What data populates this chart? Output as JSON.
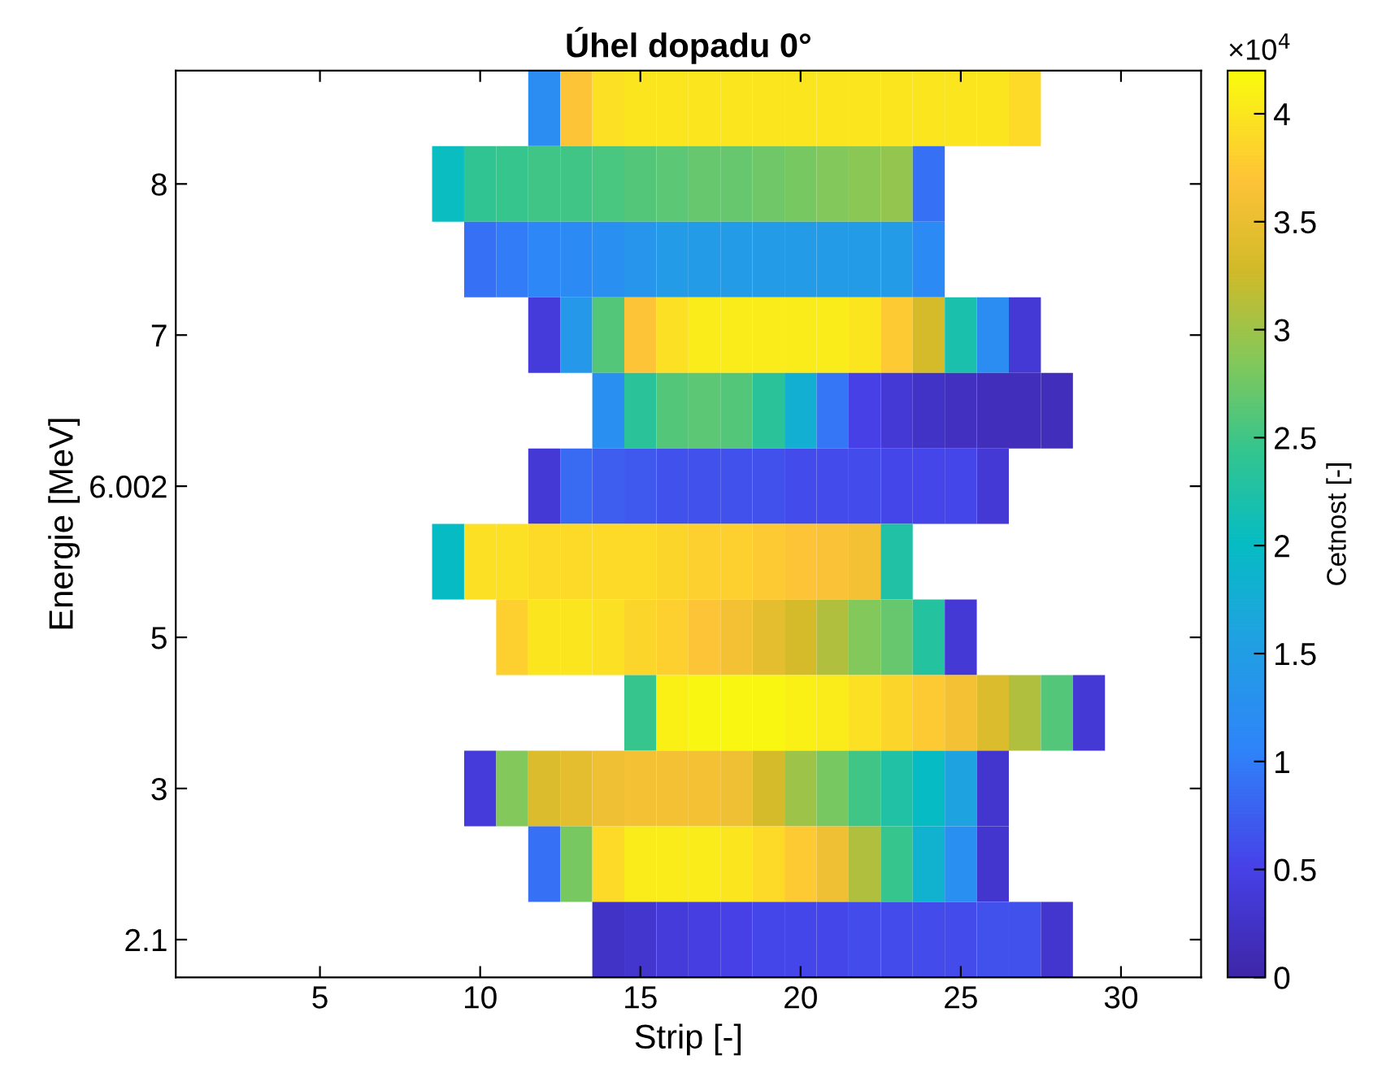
{
  "chart_data": {
    "type": "heatmap",
    "title": "Úhel dopadu 0°",
    "xlabel": "Strip [-]",
    "ylabel": "Energie [MeV]",
    "clabel": "Cetnost [-]",
    "x": [
      1,
      2,
      3,
      4,
      5,
      6,
      7,
      8,
      9,
      10,
      11,
      12,
      13,
      14,
      15,
      16,
      17,
      18,
      19,
      20,
      21,
      22,
      23,
      24,
      25,
      26,
      27,
      28,
      29,
      30,
      31,
      32
    ],
    "xlim": [
      0.5,
      32.5
    ],
    "xticks": [
      5,
      10,
      15,
      20,
      25,
      30
    ],
    "y_categories": [
      null,
      "8",
      null,
      "7",
      null,
      "6.002",
      null,
      "5",
      null,
      "3",
      null,
      "2.1"
    ],
    "cells": [
      [
        null,
        null,
        null,
        null,
        null,
        null,
        null,
        null,
        null,
        null,
        null,
        1.2,
        3.7,
        3.95,
        4.0,
        4.0,
        4.0,
        4.0,
        4.0,
        4.0,
        4.0,
        4.0,
        4.0,
        4.0,
        4.0,
        4.0,
        3.9,
        null,
        null,
        null,
        null,
        null
      ],
      [
        null,
        null,
        null,
        null,
        null,
        null,
        null,
        null,
        2.05,
        2.4,
        2.45,
        2.5,
        2.5,
        2.55,
        2.6,
        2.65,
        2.7,
        2.7,
        2.75,
        2.8,
        2.85,
        2.9,
        2.95,
        0.9,
        null,
        null,
        null,
        null,
        null,
        null,
        null,
        null
      ],
      [
        null,
        null,
        null,
        null,
        null,
        null,
        null,
        null,
        null,
        0.9,
        1.0,
        1.1,
        1.15,
        1.25,
        1.35,
        1.45,
        1.45,
        1.45,
        1.45,
        1.45,
        1.45,
        1.45,
        1.45,
        1.15,
        null,
        null,
        null,
        null,
        null,
        null,
        null,
        null
      ],
      [
        null,
        null,
        null,
        null,
        null,
        null,
        null,
        null,
        null,
        null,
        null,
        0.4,
        1.4,
        2.6,
        3.7,
        3.95,
        4.05,
        4.05,
        4.05,
        4.05,
        4.05,
        4.0,
        3.75,
        3.3,
        2.2,
        1.2,
        0.35,
        null,
        null,
        null,
        null,
        null
      ],
      [
        null,
        null,
        null,
        null,
        null,
        null,
        null,
        null,
        null,
        null,
        null,
        null,
        null,
        1.25,
        2.35,
        2.6,
        2.65,
        2.6,
        2.35,
        1.8,
        0.95,
        0.5,
        0.35,
        0.25,
        0.2,
        0.15,
        0.15,
        0.15,
        null,
        null,
        null,
        null
      ],
      [
        null,
        null,
        null,
        null,
        null,
        null,
        null,
        null,
        null,
        null,
        null,
        0.35,
        0.85,
        0.75,
        0.7,
        0.65,
        0.65,
        0.65,
        0.65,
        0.6,
        0.6,
        0.6,
        0.55,
        0.55,
        0.55,
        0.35,
        null,
        null,
        null,
        null,
        null,
        null
      ],
      [
        null,
        null,
        null,
        null,
        null,
        null,
        null,
        null,
        2.0,
        3.95,
        3.95,
        3.9,
        3.9,
        3.9,
        3.9,
        3.85,
        3.8,
        3.8,
        3.75,
        3.7,
        3.65,
        3.6,
        2.25,
        null,
        null,
        null,
        null,
        null,
        null,
        null,
        null,
        null
      ],
      [
        null,
        null,
        null,
        null,
        null,
        null,
        null,
        null,
        null,
        null,
        3.8,
        4.0,
        4.0,
        3.95,
        3.85,
        3.8,
        3.7,
        3.6,
        3.45,
        3.3,
        3.1,
        2.85,
        2.7,
        2.3,
        0.35,
        null,
        null,
        null,
        null,
        null,
        null,
        null
      ],
      [
        null,
        null,
        null,
        null,
        null,
        null,
        null,
        null,
        null,
        null,
        null,
        null,
        null,
        null,
        2.45,
        4.1,
        4.15,
        4.15,
        4.15,
        4.1,
        4.05,
        3.95,
        3.85,
        3.75,
        3.6,
        3.35,
        3.1,
        2.6,
        0.35,
        null,
        null,
        null
      ],
      [
        null,
        null,
        null,
        null,
        null,
        null,
        null,
        null,
        null,
        0.4,
        2.85,
        3.35,
        3.45,
        3.55,
        3.6,
        3.6,
        3.6,
        3.55,
        3.3,
        3.0,
        2.8,
        2.5,
        2.25,
        2.0,
        1.6,
        0.3,
        null,
        null,
        null,
        null,
        null,
        null
      ],
      [
        null,
        null,
        null,
        null,
        null,
        null,
        null,
        null,
        null,
        null,
        null,
        0.9,
        2.8,
        3.9,
        4.05,
        4.05,
        4.05,
        4.0,
        3.9,
        3.75,
        3.55,
        3.1,
        2.45,
        1.85,
        1.25,
        0.3,
        null,
        null,
        null,
        null,
        null,
        null
      ],
      [
        null,
        null,
        null,
        null,
        null,
        null,
        null,
        null,
        null,
        null,
        null,
        null,
        null,
        0.25,
        0.3,
        0.4,
        0.45,
        0.5,
        0.55,
        0.55,
        0.55,
        0.6,
        0.6,
        0.6,
        0.6,
        0.65,
        0.65,
        0.3,
        null,
        null,
        null,
        null
      ]
    ],
    "clim": [
      0,
      4.2
    ],
    "cticks": [
      0,
      0.5,
      1,
      1.5,
      2,
      2.5,
      3,
      3.5,
      4
    ],
    "annotations": [
      "×10$^{4}$"
    ],
    "grid": false
  }
}
